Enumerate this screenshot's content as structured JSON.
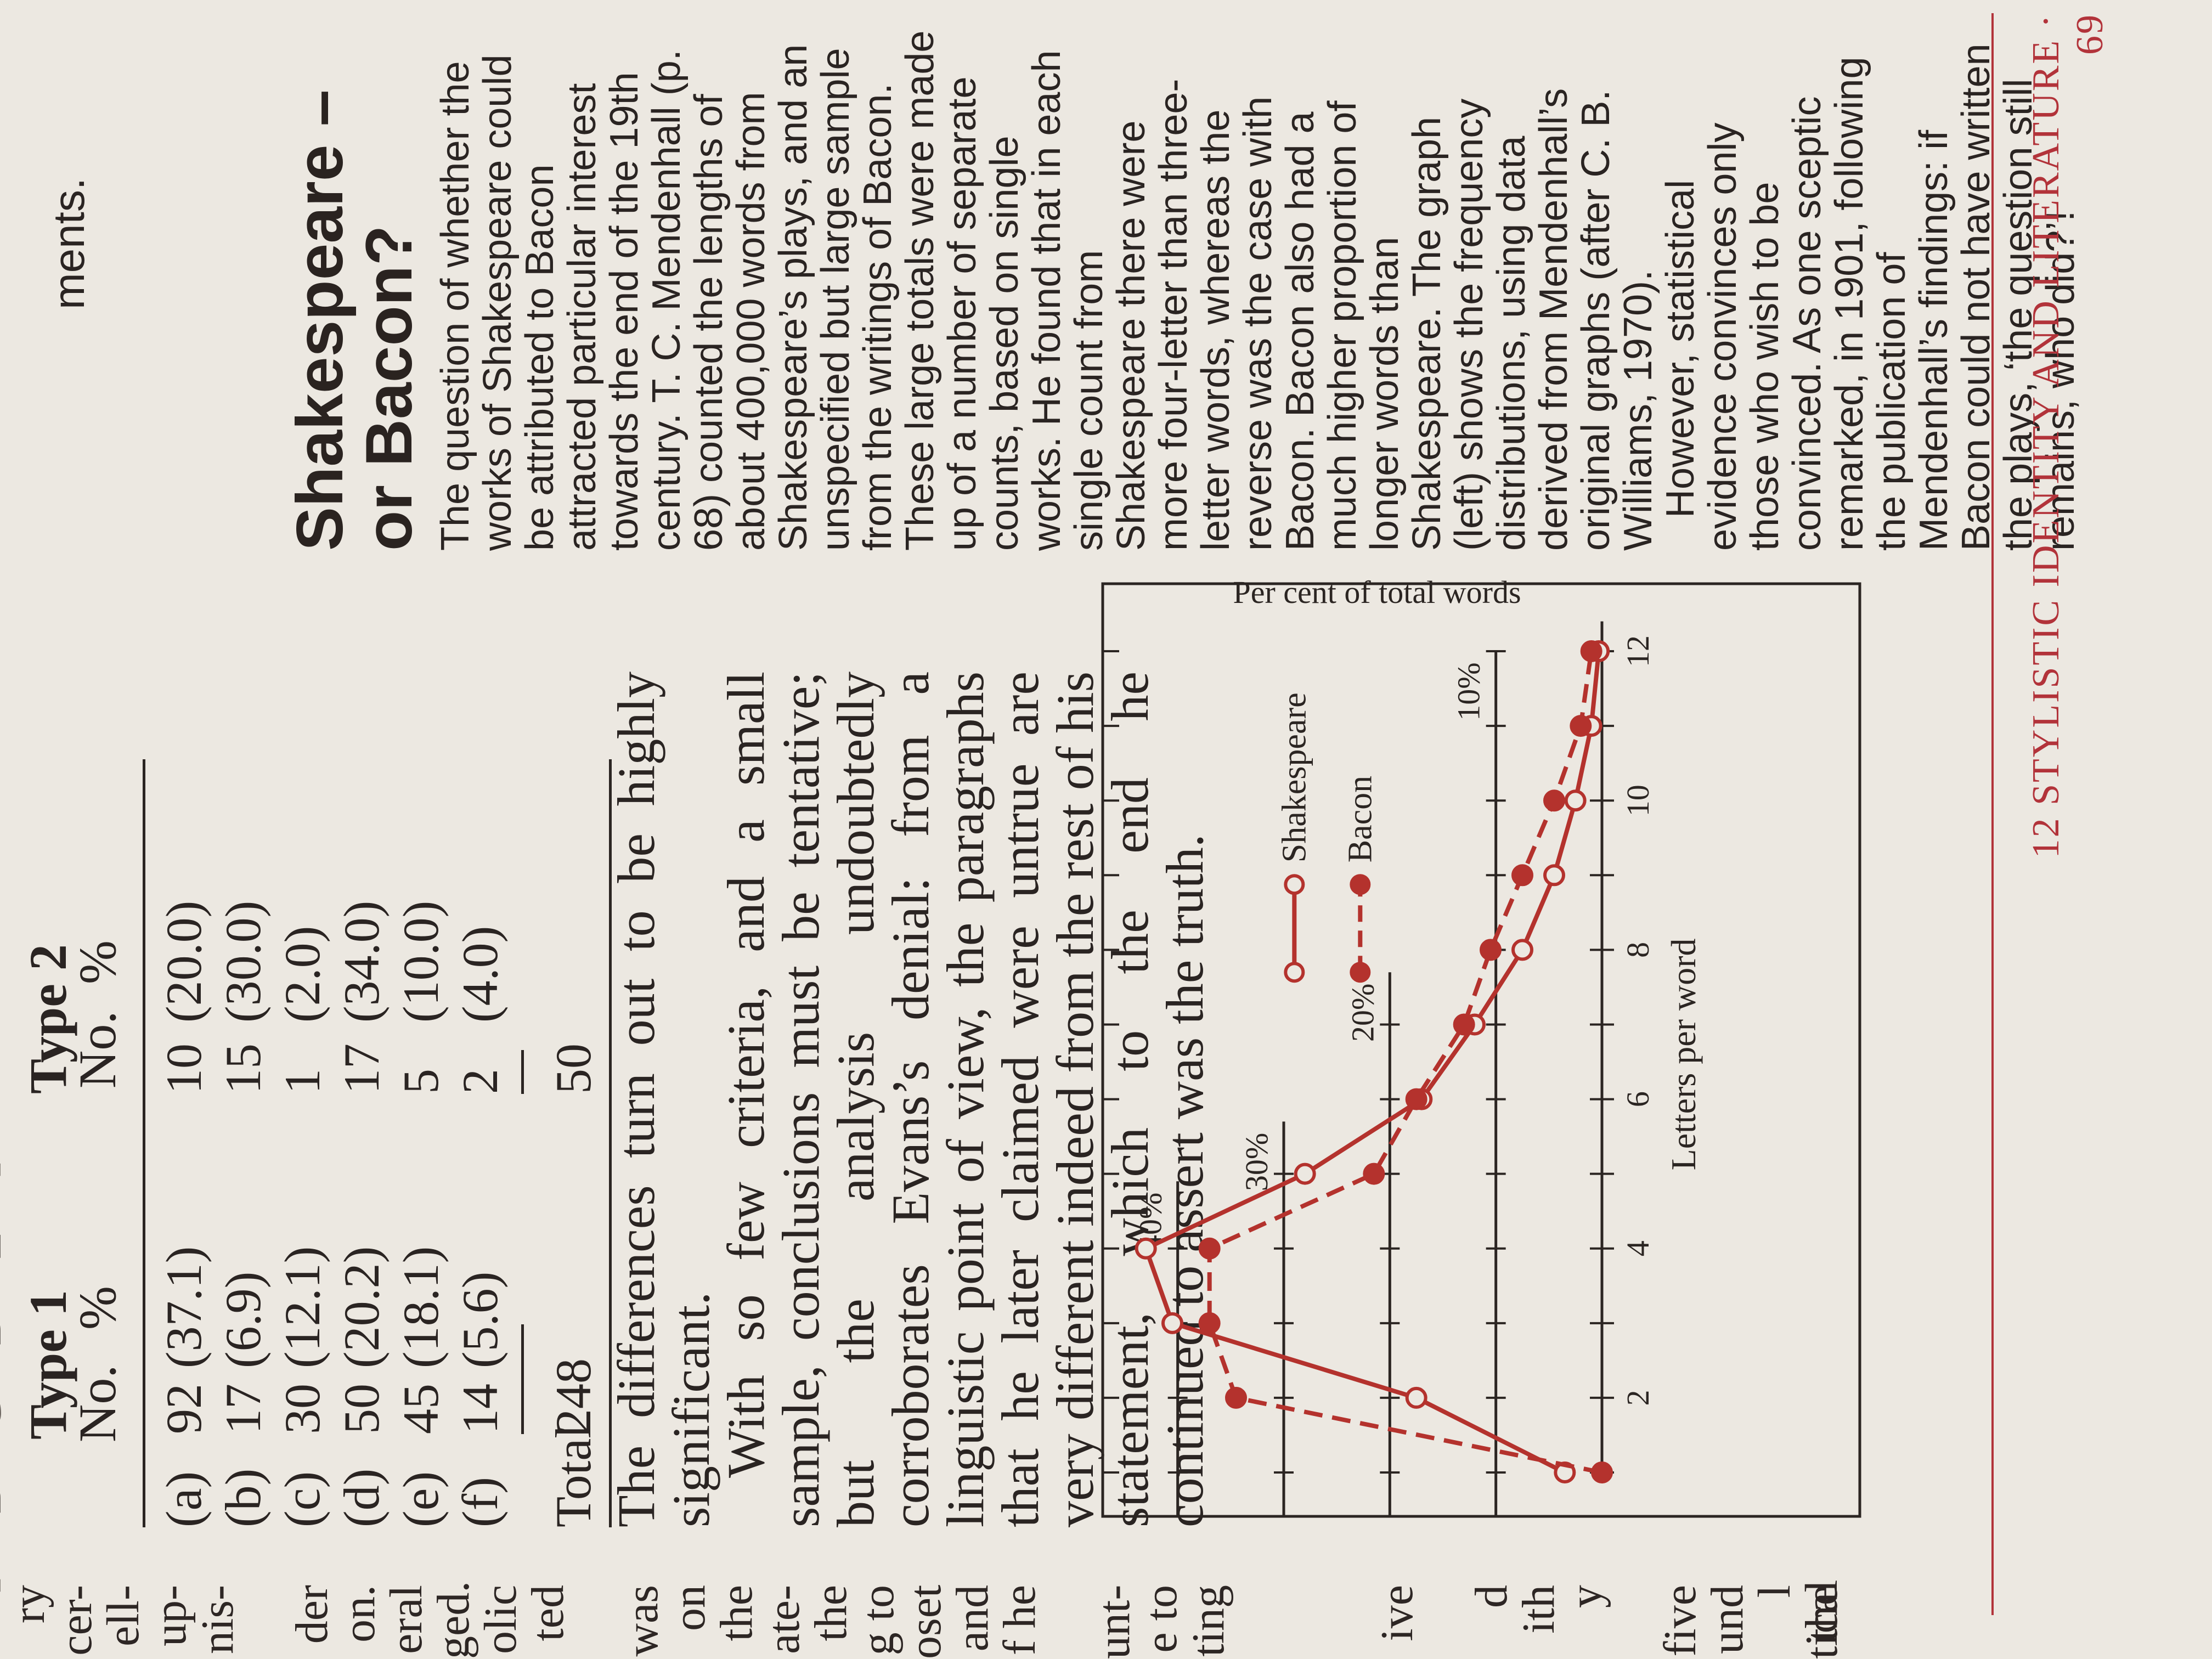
{
  "top_margin": {
    "text": "F B C D E F"
  },
  "left_fragments": [
    "ry",
    "cer-",
    "ell-",
    "up-",
    "nis-",
    "",
    "der",
    "on.",
    "eral",
    "ged.",
    "olic",
    "ted",
    "",
    "was",
    "on",
    "the",
    "ate-",
    "the",
    "g to",
    "oset",
    "and",
    "f he",
    "",
    "unt-",
    "e to",
    "ting",
    "",
    "",
    "",
    "ive",
    "",
    "d",
    "ith",
    "y",
    "",
    "five",
    "und",
    "l the",
    "tical"
  ],
  "right_fragment": "ments.",
  "table": {
    "type1": {
      "title": "Type 1",
      "no": "No.",
      "pct": "%"
    },
    "type2": {
      "title": "Type 2",
      "no": "No.",
      "pct": "%"
    },
    "rows": [
      {
        "label": "(a)",
        "n1": "92",
        "p1": "(37.1)",
        "n2": "10",
        "p2": "(20.0)"
      },
      {
        "label": "(b)",
        "n1": "17",
        "p1": "(6.9)",
        "n2": "15",
        "p2": "(30.0)"
      },
      {
        "label": "(c)",
        "n1": "30",
        "p1": "(12.1)",
        "n2": "1",
        "p2": "(2.0)"
      },
      {
        "label": "(d)",
        "n1": "50",
        "p1": "(20.2)",
        "n2": "17",
        "p2": "(34.0)"
      },
      {
        "label": "(e)",
        "n1": "45",
        "p1": "(18.1)",
        "n2": "5",
        "p2": "(10.0)"
      },
      {
        "label": "(f)",
        "n1": "14",
        "p1": "(5.6)",
        "n2": "2",
        "p2": "(4.0)"
      }
    ],
    "total": {
      "label": "Total",
      "n1": "248",
      "n2": "50"
    }
  },
  "body_text": {
    "p1": "The differences turn out to be highly significant.",
    "p2": "With so few criteria, and a small sample, conclusions must be tentative; but the analysis undoubtedly corroborates Evans’s denial: from a linguistic point of view, the paragraphs that he later claimed were untrue are very different indeed from the rest of his statement, which to the end he continued to assert was the truth."
  },
  "sidebar": {
    "title_line1": "Shakespeare –",
    "title_line2": "or Bacon?",
    "p1": "The question of whether the works of Shakespeare could be attributed to Bacon attracted particular interest towards the end of the 19th century. T. C. Mendenhall (p. 68) counted the lengths of about 400,000 words from Shakespeare’s plays, and an unspecified but large sample from the writings of Bacon. These large totals were made up of a number of separate counts, based on single works. He found that in each single count from Shakespeare there were more four-letter than three-letter words, whereas the reverse was the case with Bacon. Bacon also had a much higher proportion of longer words than Shakespeare. The graph (left) shows the frequency distributions, using data derived from Mendenhall’s original graphs (after C. B. Williams, 1970).",
    "p2": "However, statistical evidence convinces only those who wish to be convinced. As one sceptic remarked, in 1901, following the publication of Mendenhall’s findings: if Bacon could not have written the plays, ‘the question still remains, who did?’!"
  },
  "footer": {
    "text": "12 STYLISTIC IDENTITY AND LITERATURE · 69"
  },
  "chart_data": {
    "type": "line",
    "xlabel": "Letters per word",
    "ylabel": "Per cent of total words",
    "x_ticks": [
      "2",
      "4",
      "6",
      "8",
      "10",
      "12"
    ],
    "y_ticks": [
      "10%",
      "20%",
      "30%",
      "40%"
    ],
    "xlim": [
      1,
      12.5
    ],
    "ylim": [
      0,
      45
    ],
    "grid": false,
    "legend_position": "inside-center",
    "x": [
      1,
      2,
      3,
      4,
      5,
      6,
      7,
      8,
      9,
      10,
      11,
      12
    ],
    "series": [
      {
        "name": "Shakespeare",
        "marker": "open-circle",
        "line": "solid",
        "color": "#b4322d",
        "values": [
          3.5,
          17.5,
          40.5,
          43.0,
          28.0,
          17.0,
          12.0,
          7.5,
          4.5,
          2.5,
          1.0,
          0.3
        ]
      },
      {
        "name": "Bacon",
        "marker": "filled-circle",
        "line": "dashed",
        "color": "#b4322d",
        "values": [
          0,
          34.5,
          37.0,
          37.0,
          21.5,
          17.5,
          13.0,
          10.5,
          7.5,
          4.5,
          2.0,
          1.0
        ]
      }
    ]
  }
}
